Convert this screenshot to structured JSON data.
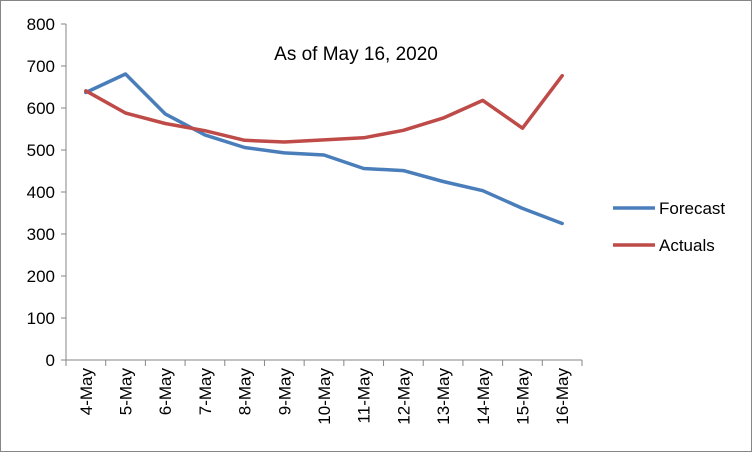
{
  "chart_data": {
    "type": "line",
    "title": "As of May 16, 2020",
    "categories": [
      "4-May",
      "5-May",
      "6-May",
      "7-May",
      "8-May",
      "9-May",
      "10-May",
      "11-May",
      "12-May",
      "13-May",
      "14-May",
      "15-May",
      "16-May"
    ],
    "ylim": [
      0,
      800
    ],
    "yticks": [
      0,
      100,
      200,
      300,
      400,
      500,
      600,
      700,
      800
    ],
    "grid": false,
    "legend_position": "right",
    "series": [
      {
        "name": "Forecast",
        "color": "#4a7ebb",
        "values": [
          637,
          681,
          586,
          536,
          506,
          493,
          488,
          456,
          451,
          425,
          403,
          361,
          325
        ]
      },
      {
        "name": "Actuals",
        "color": "#be4b48",
        "values": [
          641,
          588,
          563,
          546,
          523,
          519,
          524,
          529,
          547,
          576,
          618,
          552,
          677
        ]
      }
    ]
  }
}
